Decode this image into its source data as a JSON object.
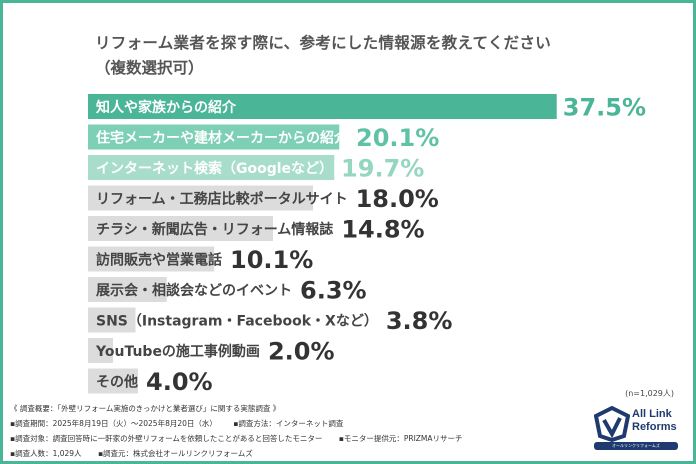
{
  "title_line1": "リフォーム業者を探す際に、参考にした情報源を教えてください",
  "title_line2": "（複数選択可）",
  "sample_size": "(n=1,029人)",
  "chart_data": {
    "type": "bar",
    "orientation": "horizontal",
    "categories": [
      "知人や家族からの紹介",
      "住宅メーカーや建材メーカーからの紹介",
      "インターネット検索（Googleなど）",
      "リフォーム・工務店比較ポータルサイト",
      "チラシ・新聞広告・リフォーム情報誌",
      "訪問販売や営業電話",
      "展示会・相談会などのイベント",
      "SNS（Instagram・Facebook・Xなど）",
      "YouTubeの施工事例動画",
      "その他"
    ],
    "values": [
      37.5,
      20.1,
      19.7,
      18.0,
      14.8,
      10.1,
      6.3,
      3.8,
      2.0,
      4.0
    ],
    "value_labels": [
      "37.5%",
      "20.1%",
      "19.7%",
      "18.0%",
      "14.8%",
      "10.1%",
      "6.3%",
      "3.8%",
      "2.0%",
      "4.0%"
    ],
    "unit": "%",
    "xlim": [
      0,
      40
    ],
    "grid": false,
    "bar_colors": [
      "#4bb598",
      "#7dcfb5",
      "#a8ddcc",
      "#dcdcdc",
      "#dcdcdc",
      "#dcdcdc",
      "#dcdcdc",
      "#dcdcdc",
      "#dcdcdc",
      "#dcdcdc"
    ],
    "label_colors": [
      "#ffffff",
      "#ffffff",
      "#ffffff",
      "#444444",
      "#444444",
      "#444444",
      "#444444",
      "#444444",
      "#444444",
      "#444444"
    ],
    "value_colors": [
      "#4bb598",
      "#5fc2a5",
      "#95d6c2",
      "#333333",
      "#333333",
      "#333333",
      "#333333",
      "#333333",
      "#333333",
      "#333333"
    ]
  },
  "footer": {
    "overview": "《 調査概要：「外壁リフォーム実施のきっかけと業者選び」に関する実態調査 》",
    "period": "▪調査期間：2025年8月19日（火）～2025年8月20日（水）",
    "method": "▪調査方法：インターネット調査",
    "organizer": "▪調査元：株式会社オールリンクリフォームズ",
    "target": "▪調査対象：調査回答時に一軒家の外壁リフォームを依頼したことがあると回答したモニター",
    "provider": "▪モニター提供元：PRIZMAリサーチ",
    "count": "▪調査人数：1,029人"
  },
  "logo": {
    "line1": "All Link",
    "line2": "Reforms",
    "sub": "オールリンクリフォームズ",
    "color": "#1e3a6e"
  }
}
